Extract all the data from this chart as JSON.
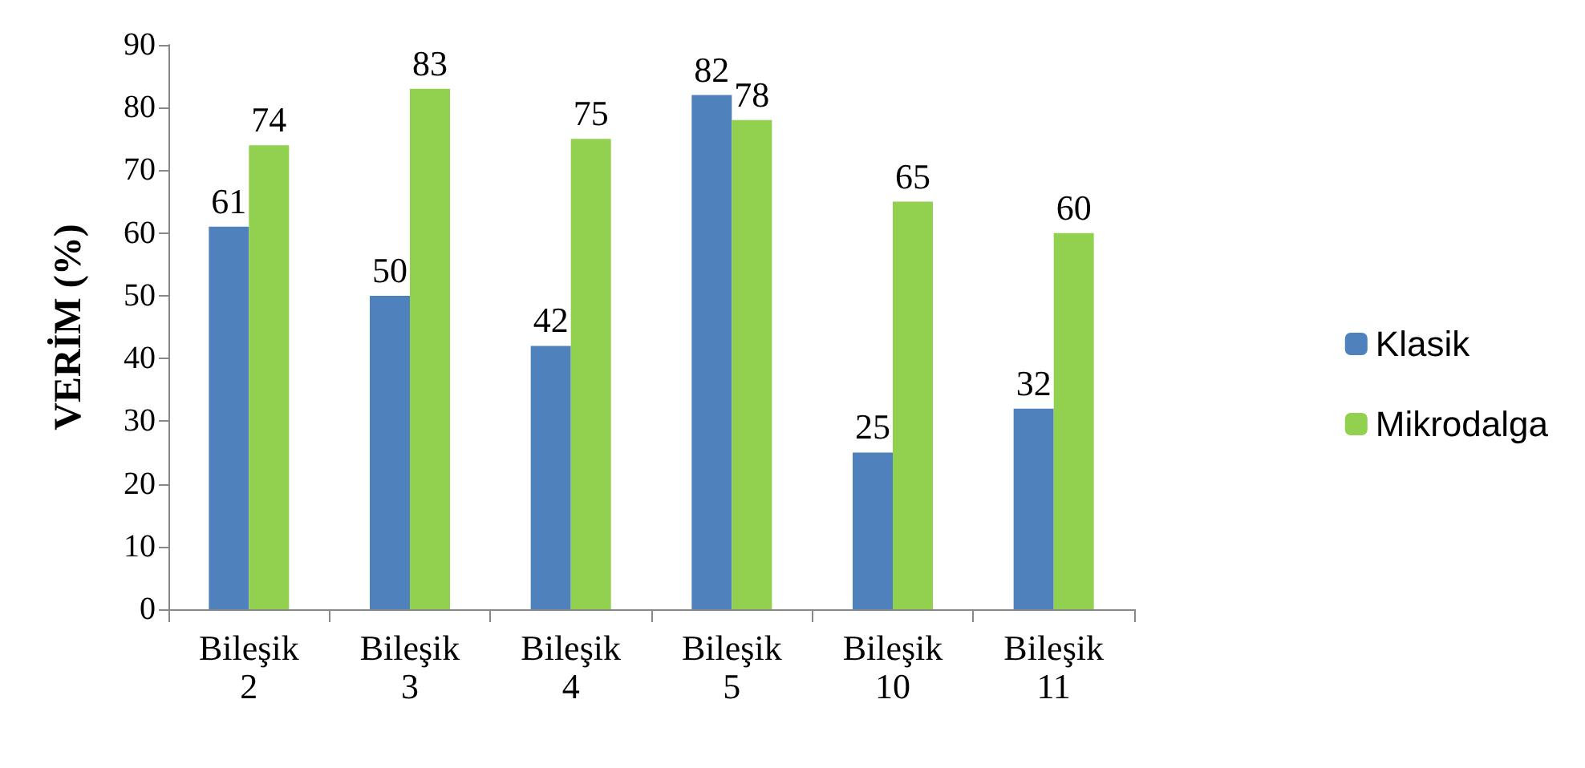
{
  "chart_data": {
    "type": "bar",
    "ylabel": "VERİM (%)",
    "categories": [
      "Bileşik 2",
      "Bileşik 3",
      "Bileşik 4",
      "Bileşik 5",
      "Bileşik 10",
      "Bileşik 11"
    ],
    "series": [
      {
        "name": "Klasik",
        "color": "#4f81bd",
        "values": [
          61,
          50,
          42,
          82,
          25,
          32
        ]
      },
      {
        "name": "Mikrodalga",
        "color": "#92d050",
        "values": [
          74,
          83,
          75,
          78,
          65,
          60
        ]
      }
    ],
    "ylim": [
      0,
      90
    ],
    "yticks": [
      0,
      10,
      20,
      30,
      40,
      50,
      60,
      70,
      80,
      90
    ],
    "data_labels": true,
    "grid": false,
    "legend": "right"
  }
}
